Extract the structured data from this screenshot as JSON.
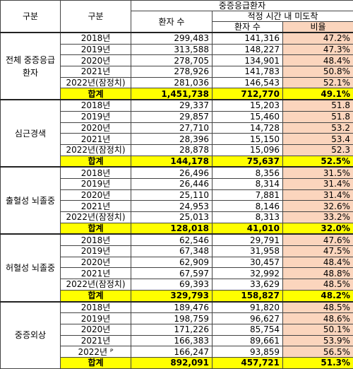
{
  "header": {
    "group": "구분",
    "sub": "구분",
    "main": "중증응급환자",
    "patients": "환자 수",
    "late": "적정 시간 내 미도착",
    "late_patients": "환자 수",
    "ratio": "비율"
  },
  "groups": [
    {
      "label": "전체 중증응급환자",
      "rows": [
        [
          "2018년",
          "299,483",
          "141,316",
          "47.2%"
        ],
        [
          "2019년",
          "313,588",
          "148,227",
          "47.3%"
        ],
        [
          "2020년",
          "278,705",
          "134,901",
          "48.4%"
        ],
        [
          "2021년",
          "278,926",
          "141,783",
          "50.8%"
        ],
        [
          "2022년(잠정치)",
          "281,036",
          "146,543",
          "52.1%"
        ]
      ],
      "total": [
        "합계",
        "1,451,738",
        "712,770",
        "49.1%"
      ]
    },
    {
      "label": "심근경색",
      "rows": [
        [
          "2018년",
          "29,337",
          "15,203",
          "51.8"
        ],
        [
          "2019년",
          "29,857",
          "15,460",
          "51.8"
        ],
        [
          "2020년",
          "27,710",
          "14,728",
          "53.2"
        ],
        [
          "2021년",
          "28,396",
          "15,150",
          "53.4"
        ],
        [
          "2022년(잠정치)",
          "28,878",
          "15,096",
          "52.3"
        ]
      ],
      "total": [
        "합계",
        "144,178",
        "75,637",
        "52.5%"
      ]
    },
    {
      "label": "출혈성 뇌졸중",
      "rows": [
        [
          "2018년",
          "26,496",
          "8,356",
          "31.5%"
        ],
        [
          "2019년",
          "26,446",
          "8,314",
          "31.4%"
        ],
        [
          "2020년",
          "25,110",
          "7,881",
          "31.4%"
        ],
        [
          "2021년",
          "24,953",
          "8,146",
          "32.6%"
        ],
        [
          "2022년(잠정치)",
          "25,013",
          "8,313",
          "33.2%"
        ]
      ],
      "total": [
        "합계",
        "128,018",
        "41,010",
        "32.0%"
      ]
    },
    {
      "label": "허혈성 뇌졸중",
      "rows": [
        [
          "2018년",
          "62,546",
          "29,791",
          "47.6%"
        ],
        [
          "2019년",
          "67,348",
          "31,958",
          "47.5%"
        ],
        [
          "2020년",
          "62,909",
          "30,457",
          "48.4%"
        ],
        [
          "2021년",
          "67,597",
          "32,992",
          "48.8%"
        ],
        [
          "2022년(잠정치)",
          "69,393",
          "33,629",
          "48.5%"
        ]
      ],
      "total": [
        "합계",
        "329,793",
        "158,827",
        "48.2%"
      ]
    },
    {
      "label": "중증외상",
      "rows": [
        [
          "2018년",
          "189,476",
          "91,820",
          "48.5%"
        ],
        [
          "2019년",
          "198,759",
          "96,627",
          "48.6%"
        ],
        [
          "2020년",
          "171,226",
          "85,754",
          "50.1%"
        ],
        [
          "2021년",
          "166,383",
          "89,661",
          "53.9%"
        ],
        [
          "2022년 ᴾ",
          "166,247",
          "93,859",
          "56.5%"
        ]
      ],
      "total": [
        "합계",
        "892,091",
        "457,721",
        "51.3%"
      ]
    }
  ]
}
